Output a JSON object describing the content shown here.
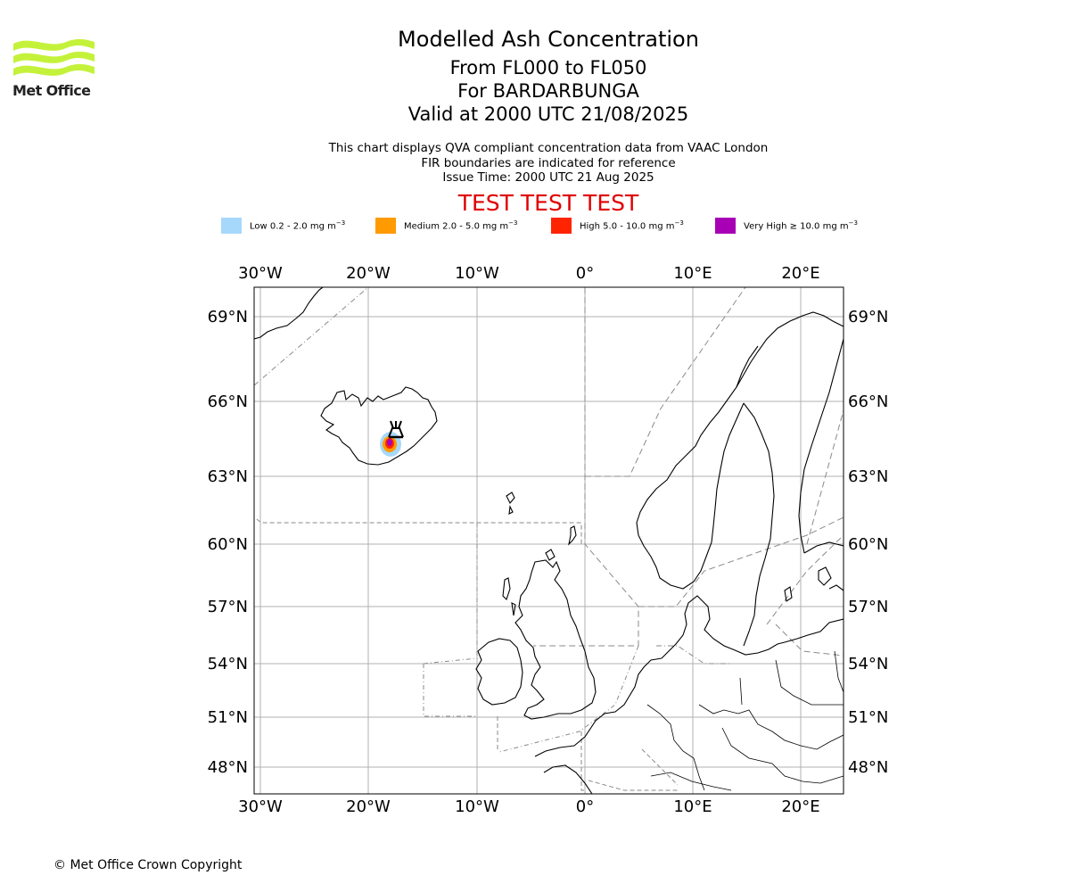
{
  "header": {
    "logo_text": "Met Office",
    "title": "Modelled Ash Concentration",
    "level_range": "From FL000 to FL050",
    "volcano": "For BARDARBUNGA",
    "valid_time": "Valid at 2000 UTC 21/08/2025"
  },
  "description": {
    "line1": "This chart displays QVA compliant concentration data from VAAC London",
    "line2": "FIR boundaries are indicated for reference",
    "line3": "Issue Time: 2000 UTC 21 Aug 2025"
  },
  "test_banner": "TEST TEST TEST",
  "legend": [
    {
      "label": "Low 0.2 - 2.0 mg m",
      "exp": "−3",
      "color": "#a6d8fb"
    },
    {
      "label": "Medium 2.0 - 5.0 mg m",
      "exp": "−3",
      "color": "#ff9a00"
    },
    {
      "label": "High 5.0 - 10.0 mg m",
      "exp": "−3",
      "color": "#ff2400"
    },
    {
      "label": "Very High  ≥  10.0 mg m",
      "exp": "−3",
      "color": "#a800b5"
    }
  ],
  "map": {
    "lon_ticks": [
      "30°W",
      "20°W",
      "10°W",
      "0°",
      "10°E",
      "20°E"
    ],
    "lat_ticks": [
      "69°N",
      "66°N",
      "63°N",
      "60°N",
      "57°N",
      "54°N",
      "51°N",
      "48°N"
    ],
    "volcano_name": "BARDARBUNGA",
    "icon": "volcano-icon"
  },
  "footer": {
    "copyright": "© Met Office Crown Copyright"
  }
}
